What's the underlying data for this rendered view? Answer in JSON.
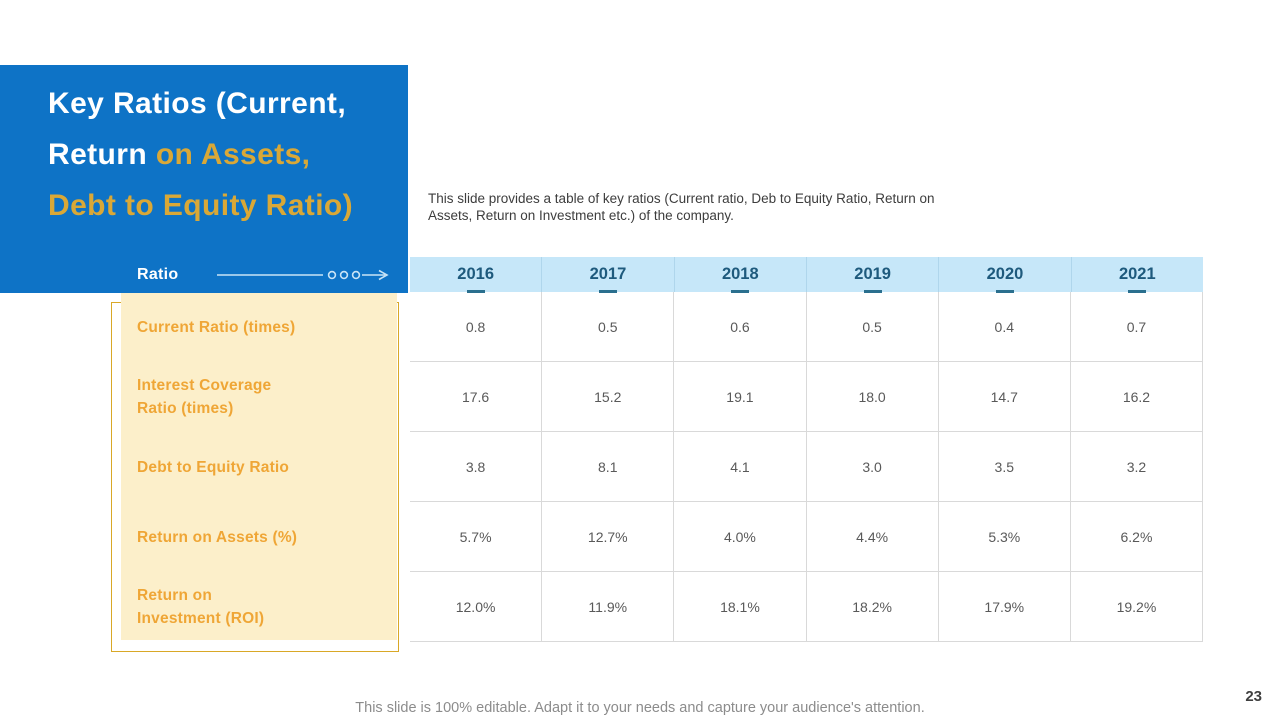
{
  "slide": {
    "description": "This slide provides a table of key ratios (Current ratio, Deb to Equity Ratio, Return on Assets, Return on Investment etc.) of the company.",
    "footer": "This slide is 100% editable. Adapt it to your needs and capture your audience's attention.",
    "page_number": "23"
  },
  "title": {
    "lines": [
      [
        {
          "text": "Key Ratios (Current,",
          "style": "white"
        }
      ],
      [
        {
          "text": "Return ",
          "style": "white"
        },
        {
          "text": "on Assets,",
          "style": "gold"
        }
      ],
      [
        {
          "text": "Debt to Equity Ratio)",
          "style": "gold"
        }
      ]
    ]
  },
  "table": {
    "corner_label": "Ratio",
    "years": [
      "2016",
      "2017",
      "2018",
      "2019",
      "2020",
      "2021"
    ],
    "rows": [
      {
        "label_lines": [
          "Current Ratio (times)"
        ],
        "values": [
          "0.8",
          "0.5",
          "0.6",
          "0.5",
          "0.4",
          "0.7"
        ]
      },
      {
        "label_lines": [
          "Interest Coverage",
          "Ratio (times)"
        ],
        "values": [
          "17.6",
          "15.2",
          "19.1",
          "18.0",
          "14.7",
          "16.2"
        ]
      },
      {
        "label_lines": [
          "Debt to Equity Ratio"
        ],
        "values": [
          "3.8",
          "8.1",
          "4.1",
          "3.0",
          "3.5",
          "3.2"
        ]
      },
      {
        "label_lines": [
          "Return on Assets (%)"
        ],
        "values": [
          "5.7%",
          "12.7%",
          "4.0%",
          "4.4%",
          "5.3%",
          "6.2%"
        ]
      },
      {
        "label_lines": [
          "Return on",
          "Investment (ROI)"
        ],
        "values": [
          "12.0%",
          "11.9%",
          "18.1%",
          "18.2%",
          "17.9%",
          "19.2%"
        ]
      }
    ]
  },
  "colors": {
    "blue": "#0E73C6",
    "title_gold": "#D9A837",
    "label_gold": "#EFA636",
    "cream": "#FCEFCA",
    "gold_border": "#D9A827",
    "header_bg": "#C6E7F9",
    "header_text": "#1E5A7D",
    "dash_teal": "#2A6F8E",
    "grid_line": "#D9D9D9",
    "cell_text": "#595959"
  }
}
